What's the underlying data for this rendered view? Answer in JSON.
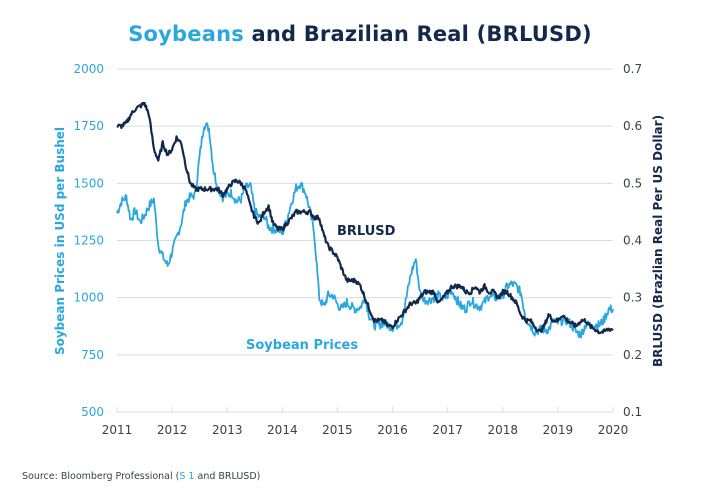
{
  "header": {
    "title_highlight": "Soybeans",
    "title_rest": " and Brazilian Real (BRLUSD)"
  },
  "footer": {
    "source_prefix": "Source: Bloomberg Professional (",
    "source_highlight": "S 1",
    "source_suffix": " and BRLUSD)"
  },
  "colors": {
    "soybean": "#2aa7df",
    "brlusd": "#13294b",
    "grid": "#dcdcdc"
  },
  "chart_data": {
    "type": "line",
    "title": "Soybeans and Brazilian Real (BRLUSD)",
    "xlabel": "",
    "ylabel": "Soybean Prices in USd per Bushel",
    "y2label": "BRLUSD (Brazlian Real Per US Dollar)",
    "xlim": [
      2011,
      2020
    ],
    "ylim": [
      500,
      2000
    ],
    "y2lim": [
      0.1,
      0.7
    ],
    "grid": true,
    "x_ticks": [
      "2011",
      "2012",
      "2013",
      "2014",
      "2015",
      "2016",
      "2017",
      "2018",
      "2019",
      "2020"
    ],
    "y_ticks": [
      "500",
      "750",
      "1000",
      "1250",
      "1500",
      "1750",
      "2000"
    ],
    "y2_ticks": [
      "0.1",
      "0.2",
      "0.3",
      "0.4",
      "0.5",
      "0.6",
      "0.7"
    ],
    "annotations": [
      {
        "text": "BRLUSD",
        "series": "BRLUSD",
        "x": 2015.0,
        "y2": 0.43
      },
      {
        "text": "Soybean Prices",
        "series": "Soybean Prices",
        "x": 2013.3,
        "y": 800
      }
    ],
    "series": [
      {
        "name": "Soybean Prices",
        "axis": "left",
        "x": [
          2011.0,
          2011.08,
          2011.17,
          2011.25,
          2011.33,
          2011.42,
          2011.5,
          2011.58,
          2011.67,
          2011.75,
          2011.83,
          2011.92,
          2012.0,
          2012.08,
          2012.17,
          2012.25,
          2012.33,
          2012.42,
          2012.5,
          2012.58,
          2012.67,
          2012.75,
          2012.83,
          2012.92,
          2013.0,
          2013.08,
          2013.17,
          2013.25,
          2013.33,
          2013.42,
          2013.5,
          2013.58,
          2013.67,
          2013.75,
          2013.83,
          2013.92,
          2014.0,
          2014.08,
          2014.17,
          2014.25,
          2014.33,
          2014.42,
          2014.5,
          2014.58,
          2014.67,
          2014.75,
          2014.83,
          2014.92,
          2015.0,
          2015.08,
          2015.17,
          2015.25,
          2015.33,
          2015.42,
          2015.5,
          2015.58,
          2015.67,
          2015.75,
          2015.83,
          2015.92,
          2016.0,
          2016.08,
          2016.17,
          2016.25,
          2016.33,
          2016.42,
          2016.5,
          2016.58,
          2016.67,
          2016.75,
          2016.83,
          2016.92,
          2017.0,
          2017.08,
          2017.17,
          2017.25,
          2017.33,
          2017.42,
          2017.5,
          2017.58,
          2017.67,
          2017.75,
          2017.83,
          2017.92,
          2018.0,
          2018.08,
          2018.17,
          2018.25,
          2018.33,
          2018.42,
          2018.5,
          2018.58,
          2018.67,
          2018.75,
          2018.83,
          2018.92,
          2019.0,
          2019.08,
          2019.17,
          2019.25,
          2019.33,
          2019.42,
          2019.5,
          2019.58,
          2019.67,
          2019.75,
          2019.83,
          2019.92,
          2020.0
        ],
        "values": [
          1370,
          1420,
          1440,
          1340,
          1380,
          1330,
          1360,
          1400,
          1430,
          1230,
          1180,
          1140,
          1200,
          1260,
          1330,
          1420,
          1440,
          1450,
          1620,
          1760,
          1740,
          1560,
          1480,
          1440,
          1450,
          1460,
          1420,
          1430,
          1480,
          1490,
          1380,
          1350,
          1360,
          1310,
          1300,
          1300,
          1280,
          1340,
          1420,
          1480,
          1500,
          1460,
          1380,
          1280,
          1000,
          960,
          1010,
          1010,
          970,
          950,
          980,
          960,
          950,
          960,
          1000,
          920,
          880,
          880,
          890,
          880,
          870,
          880,
          900,
          1000,
          1100,
          1170,
          1020,
          990,
          990,
          1000,
          1010,
          990,
          1010,
          1030,
          990,
          960,
          950,
          990,
          970,
          960,
          980,
          1010,
          1000,
          1000,
          1010,
          1050,
          1060,
          1050,
          1020,
          910,
          880,
          850,
          860,
          860,
          860,
          900,
          890,
          900,
          900,
          880,
          850,
          840,
          880,
          880,
          880,
          880,
          900,
          950,
          950
        ]
      },
      {
        "name": "BRLUSD",
        "axis": "right",
        "x": [
          2011.0,
          2011.08,
          2011.17,
          2011.25,
          2011.33,
          2011.42,
          2011.5,
          2011.58,
          2011.67,
          2011.75,
          2011.83,
          2011.92,
          2012.0,
          2012.08,
          2012.17,
          2012.25,
          2012.33,
          2012.42,
          2012.5,
          2012.58,
          2012.67,
          2012.75,
          2012.83,
          2012.92,
          2013.0,
          2013.08,
          2013.17,
          2013.25,
          2013.33,
          2013.42,
          2013.5,
          2013.58,
          2013.67,
          2013.75,
          2013.83,
          2013.92,
          2014.0,
          2014.08,
          2014.17,
          2014.25,
          2014.33,
          2014.42,
          2014.5,
          2014.58,
          2014.67,
          2014.75,
          2014.83,
          2014.92,
          2015.0,
          2015.08,
          2015.17,
          2015.25,
          2015.33,
          2015.42,
          2015.5,
          2015.58,
          2015.67,
          2015.75,
          2015.83,
          2015.92,
          2016.0,
          2016.08,
          2016.17,
          2016.25,
          2016.33,
          2016.42,
          2016.5,
          2016.58,
          2016.67,
          2016.75,
          2016.83,
          2016.92,
          2017.0,
          2017.08,
          2017.17,
          2017.25,
          2017.33,
          2017.42,
          2017.5,
          2017.58,
          2017.67,
          2017.75,
          2017.83,
          2017.92,
          2018.0,
          2018.08,
          2018.17,
          2018.25,
          2018.33,
          2018.42,
          2018.5,
          2018.58,
          2018.67,
          2018.75,
          2018.83,
          2018.92,
          2019.0,
          2019.08,
          2019.17,
          2019.25,
          2019.33,
          2019.42,
          2019.5,
          2019.58,
          2019.67,
          2019.75,
          2019.83,
          2019.92,
          2020.0
        ],
        "values": [
          0.6,
          0.6,
          0.605,
          0.62,
          0.63,
          0.635,
          0.64,
          0.62,
          0.56,
          0.54,
          0.57,
          0.55,
          0.56,
          0.58,
          0.57,
          0.53,
          0.5,
          0.49,
          0.49,
          0.49,
          0.49,
          0.49,
          0.49,
          0.48,
          0.49,
          0.5,
          0.505,
          0.5,
          0.49,
          0.46,
          0.44,
          0.43,
          0.45,
          0.46,
          0.43,
          0.42,
          0.42,
          0.43,
          0.44,
          0.45,
          0.45,
          0.45,
          0.45,
          0.44,
          0.44,
          0.41,
          0.39,
          0.38,
          0.37,
          0.35,
          0.33,
          0.33,
          0.33,
          0.32,
          0.3,
          0.28,
          0.26,
          0.26,
          0.26,
          0.25,
          0.25,
          0.26,
          0.27,
          0.28,
          0.29,
          0.29,
          0.3,
          0.31,
          0.31,
          0.31,
          0.29,
          0.3,
          0.31,
          0.32,
          0.32,
          0.32,
          0.31,
          0.31,
          0.32,
          0.31,
          0.32,
          0.31,
          0.31,
          0.3,
          0.31,
          0.31,
          0.3,
          0.29,
          0.27,
          0.26,
          0.26,
          0.25,
          0.24,
          0.25,
          0.27,
          0.26,
          0.26,
          0.27,
          0.26,
          0.255,
          0.25,
          0.26,
          0.26,
          0.25,
          0.245,
          0.24,
          0.24,
          0.245,
          0.245
        ]
      }
    ]
  }
}
